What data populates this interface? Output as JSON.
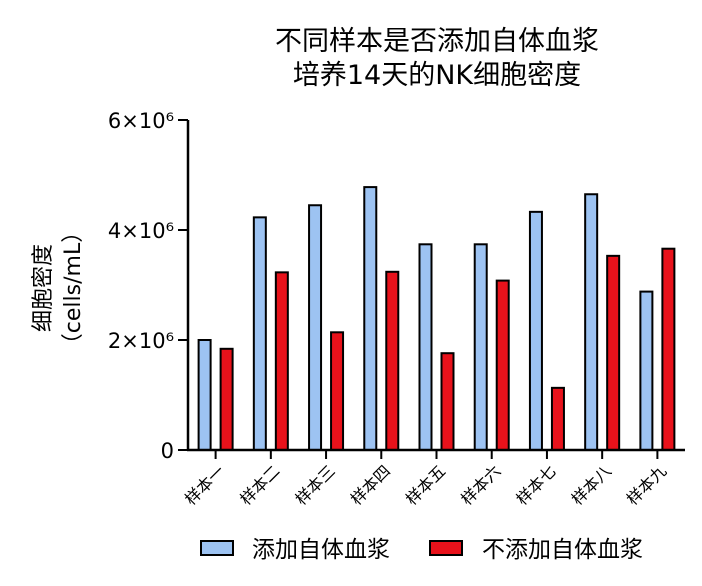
{
  "chart_data": {
    "type": "bar",
    "title_lines": [
      "不同样本是否添加自体血浆",
      "培养14天的NK细胞密度"
    ],
    "ylabel_lines": [
      "细胞密度",
      "（cells/mL）"
    ],
    "xlabel": "",
    "ylim": [
      0,
      6000000
    ],
    "y_ticks": [
      {
        "value": 0,
        "label": "0"
      },
      {
        "value": 2000000,
        "label": "2×10⁶"
      },
      {
        "value": 4000000,
        "label": "4×10⁶"
      },
      {
        "value": 6000000,
        "label": "6×10⁶"
      }
    ],
    "categories": [
      "样本一",
      "样本二",
      "样本三",
      "样本四",
      "样本五",
      "样本六",
      "样本七",
      "样本八",
      "样本九"
    ],
    "series": [
      {
        "name": "添加自体血浆",
        "color": "#9dc3f2",
        "values": [
          2000000,
          4230000,
          4450000,
          4780000,
          3740000,
          3740000,
          4330000,
          4650000,
          2880000
        ]
      },
      {
        "name": "不添加自体血浆",
        "color": "#e8121b",
        "values": [
          1840000,
          3230000,
          2140000,
          3240000,
          1760000,
          3080000,
          1130000,
          3530000,
          3660000
        ]
      }
    ],
    "grid": false,
    "legend_position": "bottom"
  }
}
